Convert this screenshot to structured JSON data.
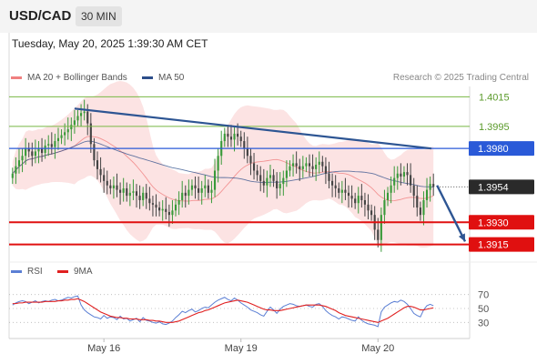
{
  "header": {
    "pair": "USD/CAD",
    "timeframe": "30 MIN"
  },
  "timestamp": "Tuesday, May 20, 2025 1:39:30 AM CET",
  "legend": {
    "ma20": {
      "label": "MA 20 + Bollinger Bands",
      "color": "#f08080"
    },
    "ma50": {
      "label": "MA 50",
      "color": "#2d4e8a"
    }
  },
  "copyright": "Research © 2025 Trading Central",
  "rsi_legend": {
    "rsi": {
      "label": "RSI",
      "color": "#5b7fd4"
    },
    "ma9": {
      "label": "9MA",
      "color": "#e02020"
    }
  },
  "colors": {
    "bull": "#3a9a3a",
    "bear": "#444444",
    "band": "#fbd9d9",
    "trend": "#2d5593",
    "support": "#e01010",
    "resistance": "#2a5ad8",
    "target": "#78b843"
  },
  "chart_data": [
    {
      "type": "candlestick",
      "ylim": [
        1.3908,
        1.4022
      ],
      "x_ticks": [
        "May 16",
        "May 19",
        "May 20"
      ],
      "levels": [
        {
          "value": "1.4015",
          "kind": "target"
        },
        {
          "value": "1.3995",
          "kind": "target"
        },
        {
          "value": "1.3980",
          "kind": "resistance"
        },
        {
          "value": "1.3954",
          "kind": "last"
        },
        {
          "value": "1.3930",
          "kind": "support"
        },
        {
          "value": "1.3915",
          "kind": "support"
        }
      ],
      "trendline": {
        "from": 1.4007,
        "to": 1.398
      },
      "forecast_arrow": {
        "from": 1.3955,
        "to": 1.3917
      },
      "close": [
        1.3963,
        1.3968,
        1.3972,
        1.3975,
        1.398,
        1.3978,
        1.3975,
        1.3978,
        1.398,
        1.3977,
        1.3982,
        1.3983,
        1.3981,
        1.3985,
        1.3987,
        1.3989,
        1.3991,
        1.3993,
        1.3996,
        1.3999,
        1.4002,
        1.4004,
        1.4005,
        1.3997,
        1.3983,
        1.3972,
        1.3966,
        1.3962,
        1.3958,
        1.3955,
        1.3953,
        1.3955,
        1.3952,
        1.395,
        1.3953,
        1.3948,
        1.395,
        1.3951,
        1.3948,
        1.3945,
        1.395,
        1.3946,
        1.3943,
        1.3942,
        1.394,
        1.3938,
        1.3939,
        1.3937,
        1.3935,
        1.3938,
        1.3942,
        1.3945,
        1.395,
        1.3948,
        1.3952,
        1.3955,
        1.3953,
        1.395,
        1.3953,
        1.3955,
        1.395,
        1.3952,
        1.3965,
        1.3975,
        1.3985,
        1.399,
        1.3988,
        1.3986,
        1.399,
        1.3988,
        1.3985,
        1.398,
        1.3975,
        1.397,
        1.3965,
        1.3962,
        1.3958,
        1.3955,
        1.396,
        1.3962,
        1.3958,
        1.3953,
        1.3956,
        1.396,
        1.3965,
        1.3968,
        1.397,
        1.3968,
        1.3966,
        1.3968,
        1.397,
        1.3968,
        1.3966,
        1.3969,
        1.3971,
        1.3968,
        1.3963,
        1.3958,
        1.3955,
        1.3953,
        1.395,
        1.3952,
        1.395,
        1.3948,
        1.3946,
        1.3943,
        1.3948,
        1.3945,
        1.3942,
        1.3938,
        1.3935,
        1.3925,
        1.3918,
        1.3935,
        1.3945,
        1.395,
        1.3955,
        1.396,
        1.3963,
        1.3961,
        1.3964,
        1.3962,
        1.3955,
        1.3948,
        1.394,
        1.3935,
        1.3945,
        1.3952,
        1.3956,
        1.3954
      ]
    },
    {
      "type": "line",
      "ylim": [
        20,
        80
      ],
      "y_ticks": [
        70,
        50,
        30
      ],
      "series": [
        {
          "name": "RSI",
          "values": [
            55,
            58,
            60,
            61,
            60,
            57,
            59,
            61,
            58,
            60,
            61,
            60,
            62,
            63,
            61,
            62,
            64,
            66,
            65,
            67,
            68,
            55,
            48,
            44,
            41,
            38,
            37,
            35,
            40,
            36,
            38,
            37,
            34,
            39,
            35,
            36,
            32,
            34,
            36,
            31,
            37,
            33,
            32,
            30,
            29,
            31,
            28,
            27,
            29,
            32,
            37,
            41,
            46,
            44,
            47,
            49,
            45,
            47,
            50,
            52,
            51,
            55,
            59,
            62,
            64,
            66,
            63,
            61,
            65,
            62,
            58,
            55,
            52,
            48,
            46,
            44,
            41,
            39,
            46,
            52,
            48,
            43,
            49,
            53,
            55,
            57,
            56,
            54,
            53,
            54,
            55,
            53,
            52,
            56,
            57,
            53,
            47,
            43,
            40,
            38,
            35,
            38,
            37,
            35,
            33,
            32,
            38,
            33,
            30,
            28,
            27,
            26,
            24,
            45,
            52,
            55,
            58,
            60,
            59,
            62,
            60,
            56,
            50,
            43,
            40,
            38,
            48,
            54,
            56,
            54
          ]
        },
        {
          "name": "9MA",
          "values": [
            57,
            57,
            58,
            58,
            59,
            59,
            59,
            59,
            59,
            59,
            60,
            60,
            60,
            60,
            61,
            61,
            62,
            62,
            63,
            63,
            64,
            62,
            60,
            57,
            54,
            51,
            48,
            45,
            43,
            41,
            39,
            38,
            37,
            37,
            36,
            36,
            35,
            35,
            35,
            34,
            34,
            34,
            33,
            33,
            32,
            32,
            31,
            30,
            30,
            30,
            31,
            32,
            34,
            36,
            38,
            40,
            42,
            44,
            45,
            47,
            48,
            50,
            52,
            54,
            56,
            58,
            59,
            60,
            61,
            62,
            61,
            60,
            59,
            57,
            55,
            53,
            51,
            49,
            48,
            48,
            47,
            47,
            47,
            48,
            49,
            50,
            51,
            52,
            53,
            54,
            55,
            55,
            55,
            55,
            55,
            54,
            53,
            51,
            49,
            47,
            44,
            42,
            40,
            39,
            38,
            37,
            36,
            35,
            34,
            33,
            32,
            31,
            30,
            32,
            34,
            36,
            39,
            42,
            45,
            48,
            51,
            53,
            53,
            52,
            50,
            48,
            48,
            49,
            50,
            51
          ]
        }
      ]
    }
  ]
}
